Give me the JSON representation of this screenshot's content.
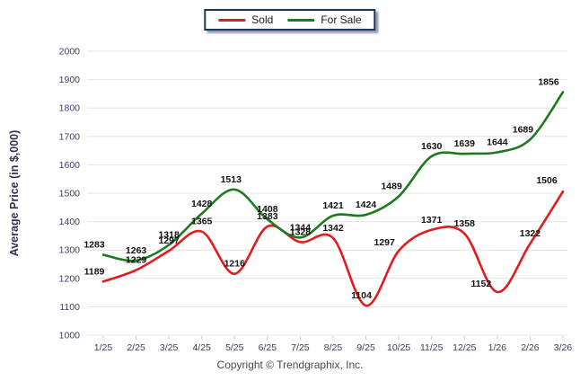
{
  "footer": {
    "copyright": "Copyright © Trendgraphix, Inc."
  },
  "chart_data": {
    "type": "line",
    "curve": "smooth",
    "title": "",
    "xlabel": "",
    "ylabel": "Average Price (in $,000)",
    "ylim": [
      1000,
      2000
    ],
    "ytick_step": 100,
    "grid": "horizontal",
    "legend_position": "top-center",
    "categories": [
      "1/25",
      "2/25",
      "3/25",
      "4/25",
      "5/25",
      "6/25",
      "7/25",
      "8/25",
      "9/25",
      "10/25",
      "11/25",
      "12/25",
      "1/26",
      "2/26",
      "3/26"
    ],
    "series": [
      {
        "name": "Sold",
        "color": "#e31b1c",
        "values": [
          1189,
          1229,
          1297,
          1365,
          1216,
          1383,
          1328,
          1342,
          1104,
          1297,
          1371,
          1358,
          1152,
          1322,
          1506
        ]
      },
      {
        "name": "For Sale",
        "color": "#1e7a1e",
        "values": [
          1283,
          1263,
          1318,
          1428,
          1513,
          1408,
          1344,
          1421,
          1424,
          1489,
          1630,
          1639,
          1644,
          1689,
          1856
        ]
      }
    ],
    "colors": {
      "grid": "#e4e4e4",
      "tick_text": "#3d3d5c",
      "axis_title": "#333355",
      "value_label": "#111111"
    }
  }
}
